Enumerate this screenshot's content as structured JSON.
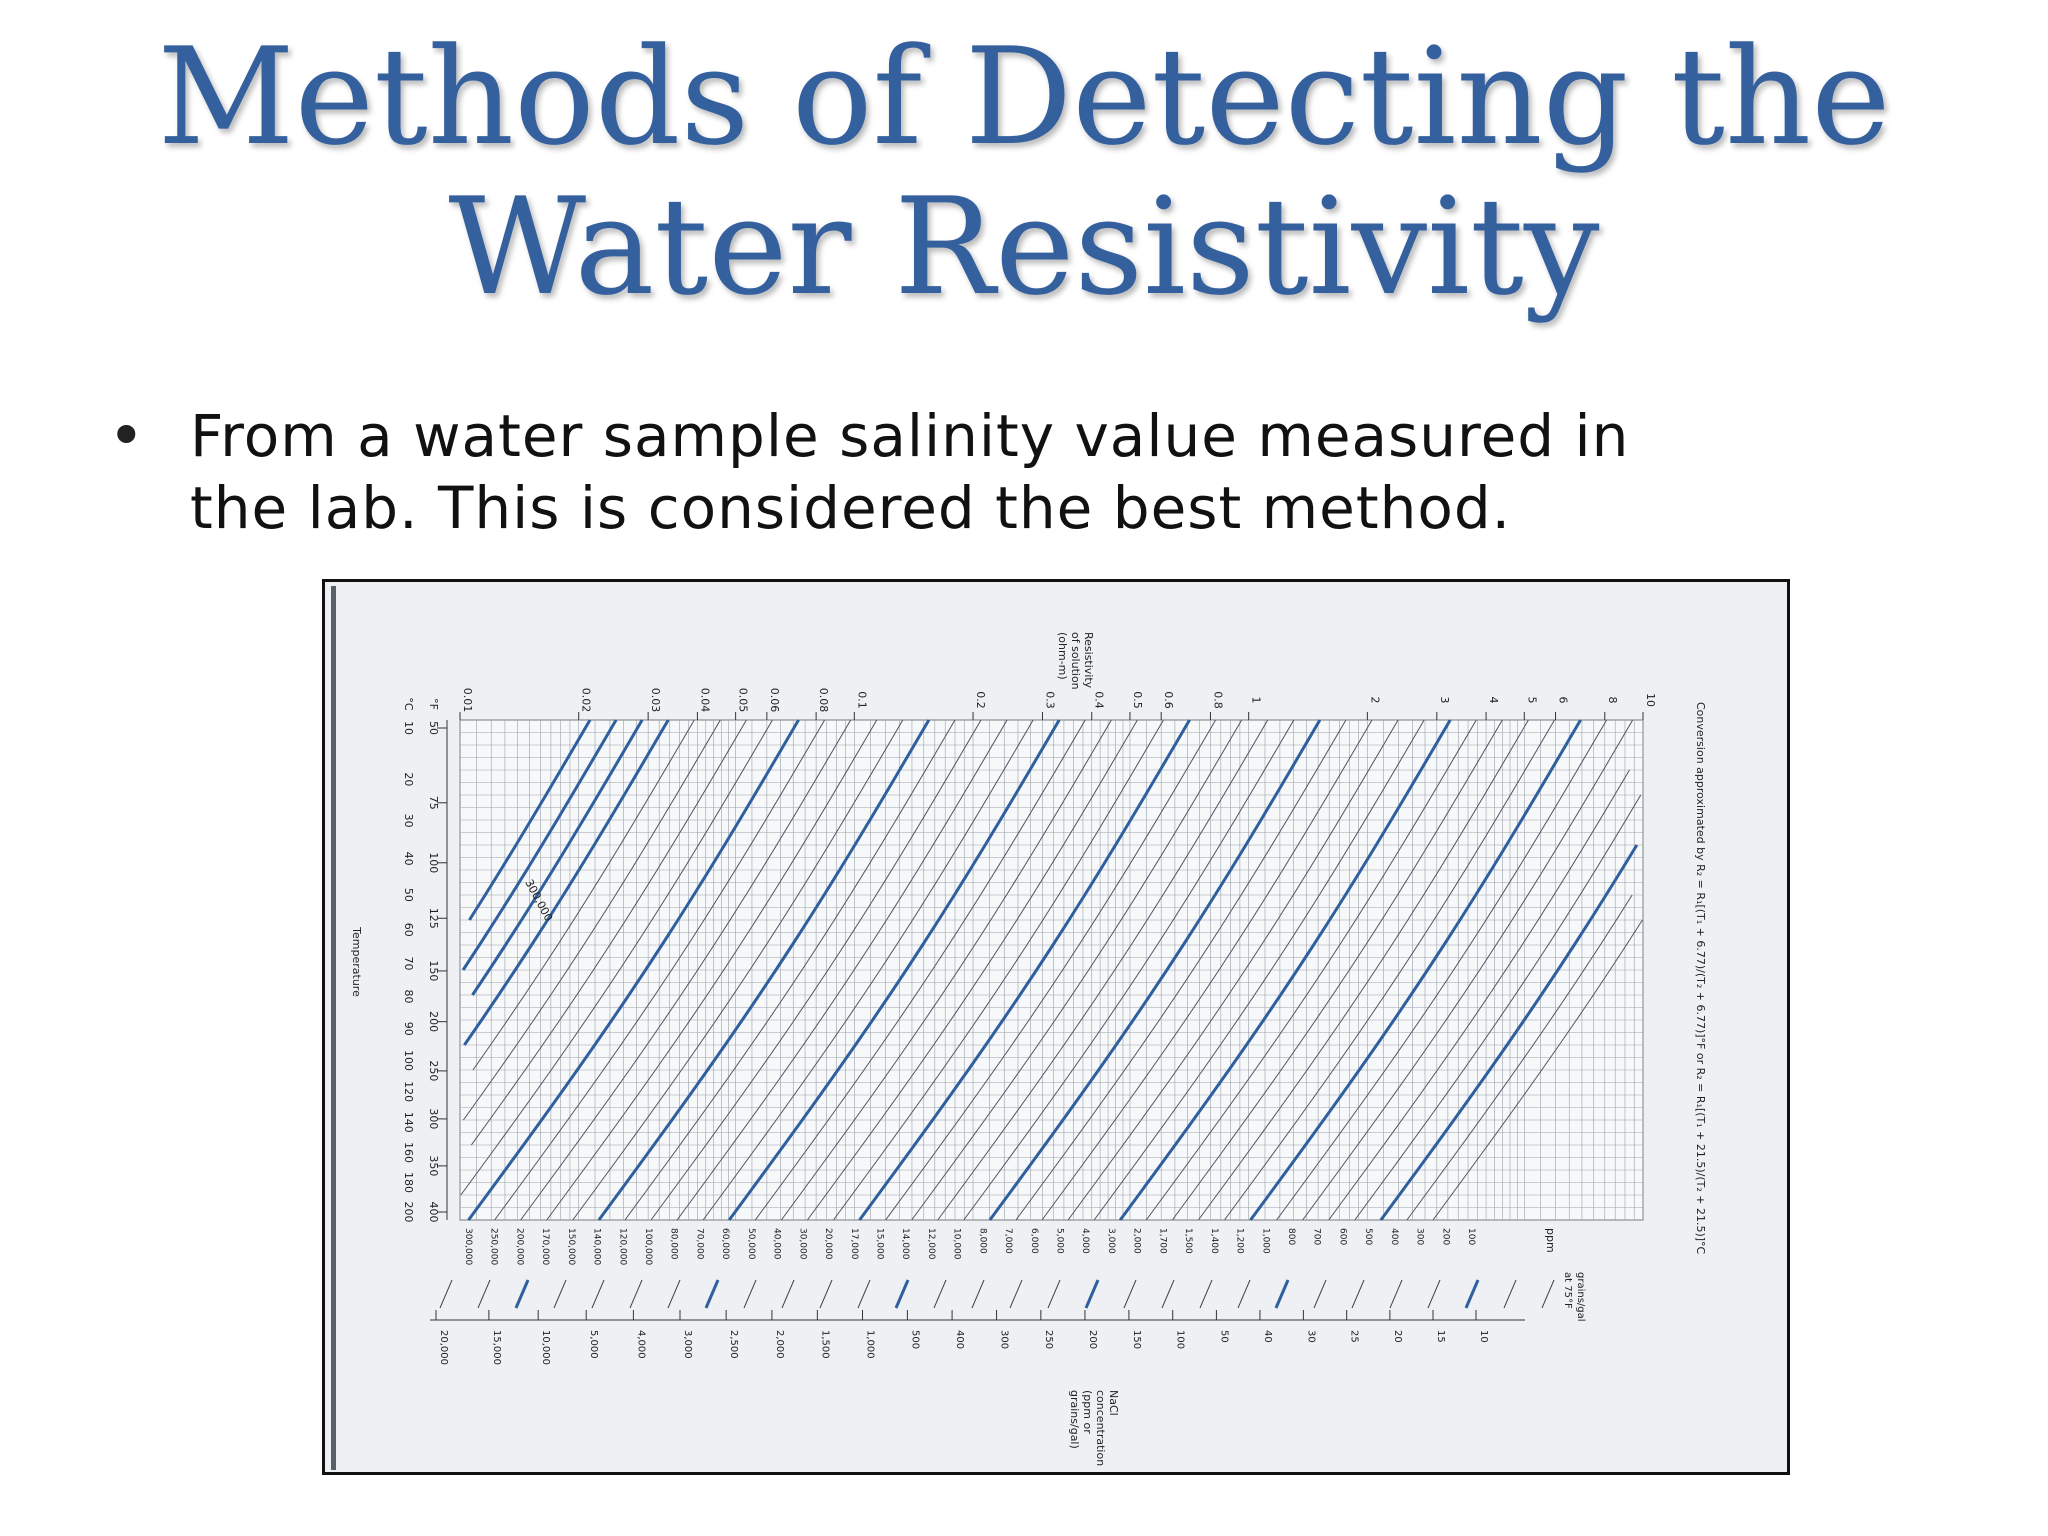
{
  "slide": {
    "title_line1": "Methods of Detecting the",
    "title_line2": "Water Resistivity",
    "bullet": "From a water sample salinity value measured in the lab. This is considered the best method.",
    "bullet_line1": "From a water sample salinity value measured in",
    "bullet_line2": "the lab. This is considered the best method."
  },
  "chart_data": {
    "type": "line",
    "note": "Resistivity of NaCl solutions vs. temperature (chart is printed rotated 90°)",
    "resistivity_label": [
      "Resistivity",
      "of solution",
      "(ohm-m)"
    ],
    "resistivity_ticks": [
      "0.01",
      "0.02",
      "0.03",
      "0.04",
      "0.05",
      "0.06",
      "0.08",
      "0.1",
      "0.2",
      "0.3",
      "0.4",
      "0.5",
      "0.6",
      "0.8",
      "1",
      "2",
      "3",
      "4",
      "5",
      "6",
      "8",
      "10"
    ],
    "temperature_label": "Temperature",
    "temp_f_unit": "°F",
    "temp_c_unit": "°C",
    "temp_f_ticks": [
      "50",
      "75",
      "100",
      "125",
      "150",
      "200",
      "250",
      "300",
      "350",
      "400"
    ],
    "temp_c_ticks": [
      "10",
      "20",
      "30",
      "40",
      "50",
      "60",
      "70",
      "80",
      "90",
      "100",
      "120",
      "140",
      "160",
      "180",
      "200"
    ],
    "conversion_note": "Conversion approximated by R₂ = R₁[(T₁ + 6.77)/(T₂ + 6.77)]°F or R₂ = R₁[(T₁ + 21.5)/(T₂ + 21.5)]°C",
    "ppm_label": "ppm",
    "ppm_ticks": [
      "300,000",
      "250,000",
      "200,000",
      "170,000",
      "150,000",
      "140,000",
      "120,000",
      "100,000",
      "80,000",
      "70,000",
      "60,000",
      "50,000",
      "40,000",
      "30,000",
      "20,000",
      "17,000",
      "15,000",
      "14,000",
      "12,000",
      "10,000",
      "8,000",
      "7,000",
      "6,000",
      "5,000",
      "4,000",
      "3,000",
      "2,000",
      "1,700",
      "1,500",
      "1,400",
      "1,200",
      "1,000",
      "800",
      "700",
      "600",
      "500",
      "400",
      "300",
      "200",
      "100"
    ],
    "curve_annotation": "300,000",
    "grains_label": [
      "grains/gal",
      "at 75°F"
    ],
    "grains_ticks": [
      "20,000",
      "15,000",
      "10,000",
      "5,000",
      "4,000",
      "3,000",
      "2,500",
      "2,000",
      "1,500",
      "1,000",
      "500",
      "400",
      "300",
      "250",
      "200",
      "150",
      "100",
      "50",
      "40",
      "30",
      "25",
      "20",
      "15",
      "10"
    ],
    "nacl_label": [
      "NaCl",
      "concentration",
      "(ppm or",
      "grains/gal)"
    ]
  }
}
